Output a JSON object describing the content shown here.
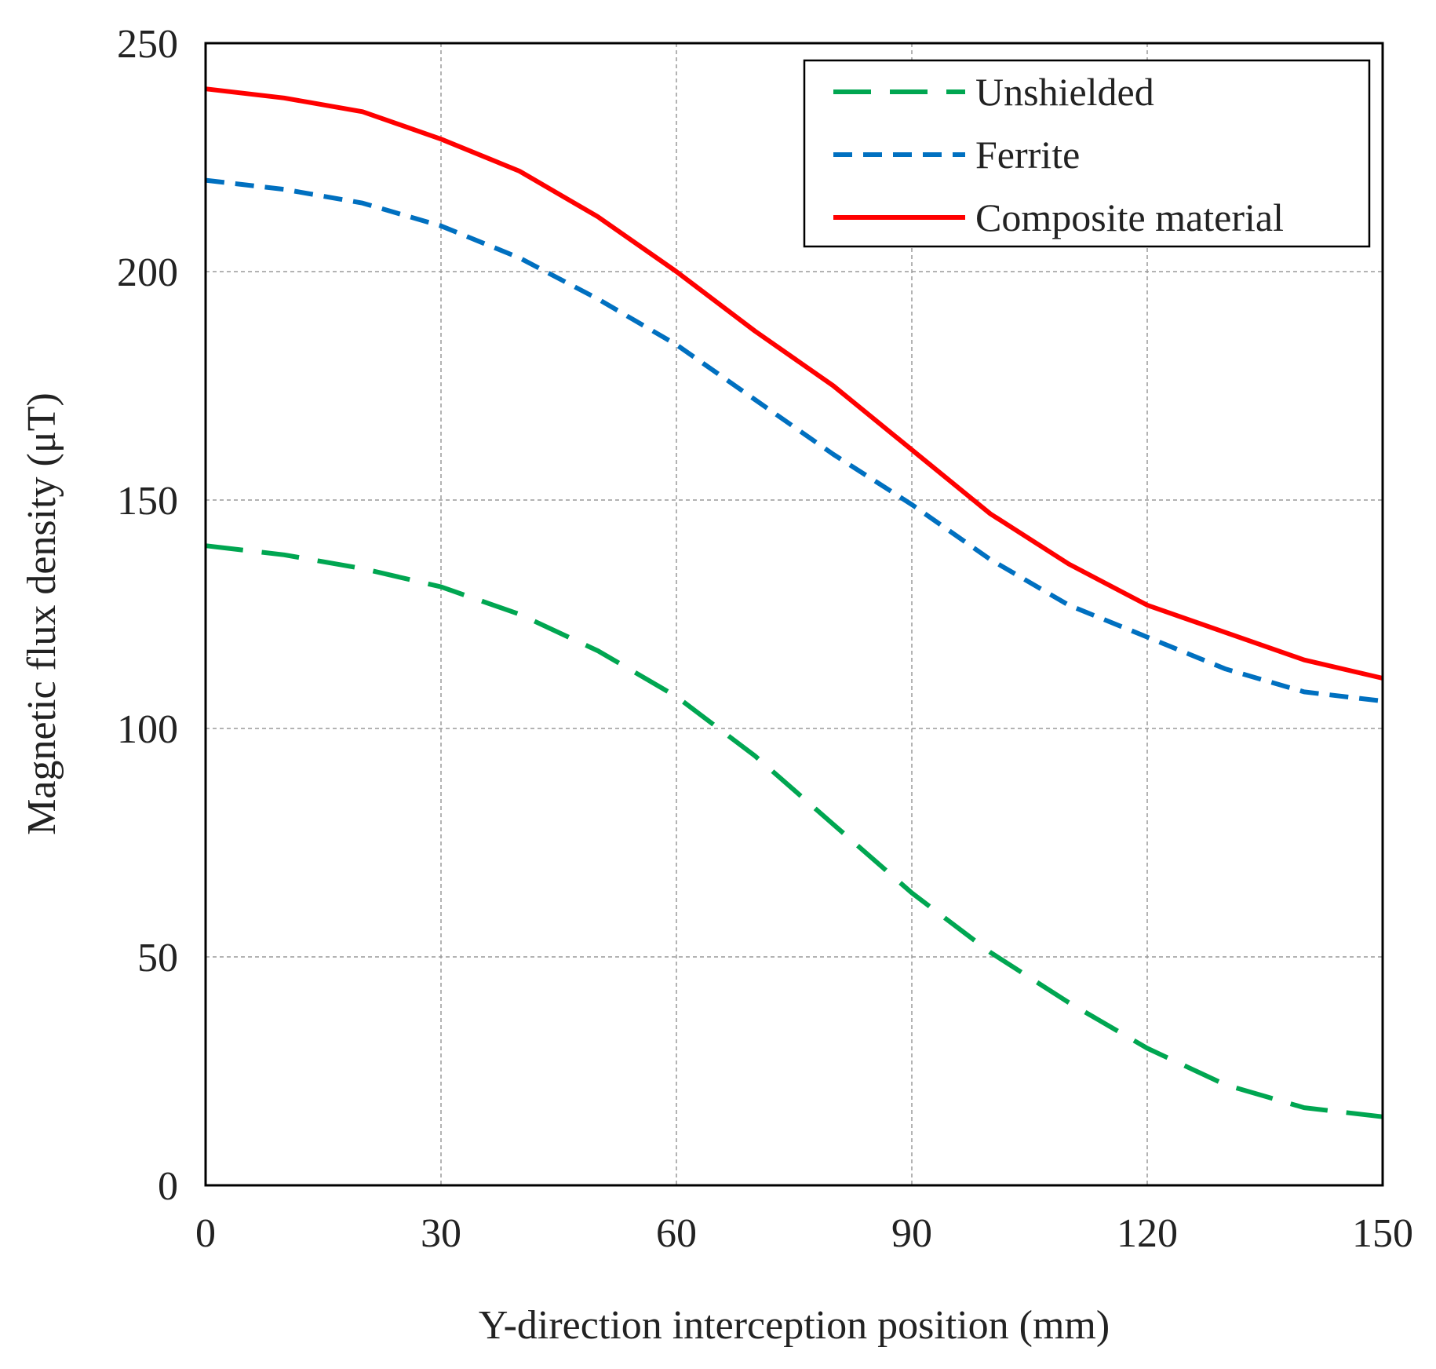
{
  "chart_data": {
    "type": "line",
    "xlabel": "Y-direction interception position (mm)",
    "ylabel": "Magnetic flux density (μT)",
    "xlim": [
      0,
      150
    ],
    "ylim": [
      0,
      250
    ],
    "xticks": [
      0,
      30,
      60,
      90,
      120,
      150
    ],
    "yticks": [
      0,
      50,
      100,
      150,
      200,
      250
    ],
    "grid": true,
    "legend_position": "top-right",
    "x": [
      0,
      10,
      20,
      30,
      40,
      50,
      60,
      70,
      80,
      90,
      100,
      110,
      120,
      130,
      140,
      150
    ],
    "series": [
      {
        "name": "Unshielded",
        "color": "#00a651",
        "dash": "long-dash",
        "values": [
          140,
          138,
          135,
          131,
          125,
          117,
          107,
          94,
          79,
          64,
          51,
          40,
          30,
          22,
          17,
          15
        ]
      },
      {
        "name": "Ferrite",
        "color": "#0070c0",
        "dash": "short-dash",
        "values": [
          220,
          218,
          215,
          210,
          203,
          194,
          184,
          172,
          160,
          149,
          137,
          127,
          120,
          113,
          108,
          106
        ]
      },
      {
        "name": "Composite material",
        "color": "#ff0000",
        "dash": "solid",
        "values": [
          240,
          238,
          235,
          229,
          222,
          212,
          200,
          187,
          175,
          161,
          147,
          136,
          127,
          121,
          115,
          111
        ]
      }
    ]
  }
}
